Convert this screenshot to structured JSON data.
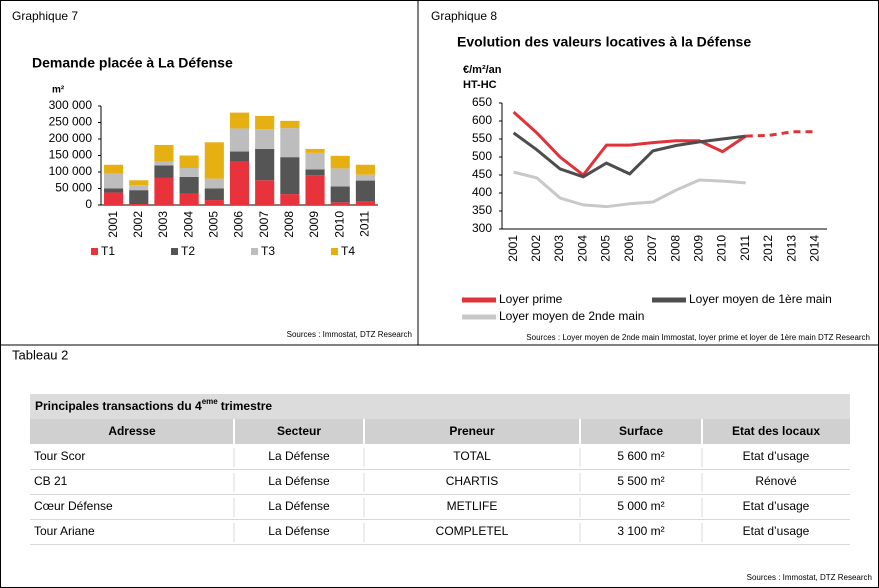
{
  "panels": {
    "left": "Graphique 7",
    "right": "Graphique 8",
    "bottom": "Tableau 2"
  },
  "chart_data": [
    {
      "type": "stacked_bar",
      "title": "Demande placée à La Défense",
      "y_unit": "m²",
      "categories": [
        "2001",
        "2002",
        "2003",
        "2004",
        "2005",
        "2006",
        "2007",
        "2008",
        "2009",
        "2010",
        "2011"
      ],
      "series": [
        {
          "name": "T1",
          "color": "#e8323c",
          "values": [
            38000,
            3000,
            82000,
            35000,
            15000,
            132000,
            75000,
            33000,
            90000,
            8000,
            12000
          ]
        },
        {
          "name": "T2",
          "color": "#555555",
          "values": [
            12000,
            42000,
            38000,
            50000,
            35000,
            30000,
            95000,
            112000,
            18000,
            48000,
            62000
          ]
        },
        {
          "name": "T3",
          "color": "#bdbdbd",
          "values": [
            45000,
            15000,
            12000,
            27000,
            30000,
            70000,
            60000,
            88000,
            50000,
            55000,
            18000
          ]
        },
        {
          "name": "T4",
          "color": "#e6b012",
          "values": [
            27000,
            15000,
            50000,
            38000,
            110000,
            48000,
            40000,
            22000,
            12000,
            38000,
            30000
          ]
        }
      ],
      "ylim": [
        0,
        300000
      ],
      "yticks": [
        0,
        {
          "value": 50000,
          "label": "50 000"
        },
        {
          "value": 100000,
          "label": "100 000"
        },
        {
          "value": 150000,
          "label": "150 000"
        },
        {
          "value": 200000,
          "label": "200 000"
        },
        {
          "value": 250000,
          "label": "250 000"
        },
        {
          "value": 300000,
          "label": "300 000"
        }
      ],
      "source": "Sources : Immostat, DTZ Research"
    },
    {
      "type": "line",
      "title": "Evolution des valeurs locatives à la Défense",
      "y_label": [
        "€/m²/an",
        "HT-HC"
      ],
      "categories": [
        "2001",
        "2002",
        "2003",
        "2004",
        "2005",
        "2006",
        "2007",
        "2008",
        "2009",
        "2010",
        "2011",
        "2012",
        "2013",
        "2014"
      ],
      "series": [
        {
          "name": "Loyer prime",
          "color": "#e0323a",
          "dashed_after": "2011",
          "values": [
            625,
            567,
            500,
            450,
            533,
            533,
            540,
            545,
            545,
            515,
            558,
            560,
            570,
            570
          ]
        },
        {
          "name": "Loyer moyen de 1ère main",
          "color": "#4d4d4d",
          "values": [
            567,
            520,
            467,
            445,
            483,
            453,
            517,
            532,
            542,
            550,
            558,
            null,
            null,
            null
          ]
        },
        {
          "name": "Loyer moyen de 2nde main",
          "color": "#c8c8c8",
          "values": [
            458,
            442,
            386,
            367,
            362,
            370,
            375,
            408,
            436,
            433,
            428,
            null,
            null,
            null
          ]
        }
      ],
      "ylim": [
        300,
        650
      ],
      "yticks": [
        300,
        350,
        400,
        450,
        500,
        550,
        600,
        650
      ],
      "source": "Sources : Loyer moyen de 2nde main Immostat, loyer prime et loyer de 1ère main DTZ Research"
    }
  ],
  "table": {
    "title": "Principales transactions du 4",
    "title_sup": "eme",
    "title_end": "trimestre",
    "header": [
      "Adresse",
      "Secteur",
      "Preneur",
      "Surface",
      "Etat des locaux"
    ],
    "rows": [
      [
        "Tour Scor",
        "La Défense",
        "TOTAL",
        "5 600 m²",
        "Etat d’usage"
      ],
      [
        "CB 21",
        "La Défense",
        "CHARTIS",
        "5 500 m²",
        "Rénové"
      ],
      [
        "Cœur Défense",
        "La Défense",
        "METLIFE",
        "5 000 m²",
        "Etat d’usage"
      ],
      [
        "Tour Ariane",
        "La Défense",
        "COMPLETEL",
        "3 100 m²",
        "Etat d’usage"
      ]
    ],
    "source": "Sources :  Immostat, DTZ Research"
  }
}
